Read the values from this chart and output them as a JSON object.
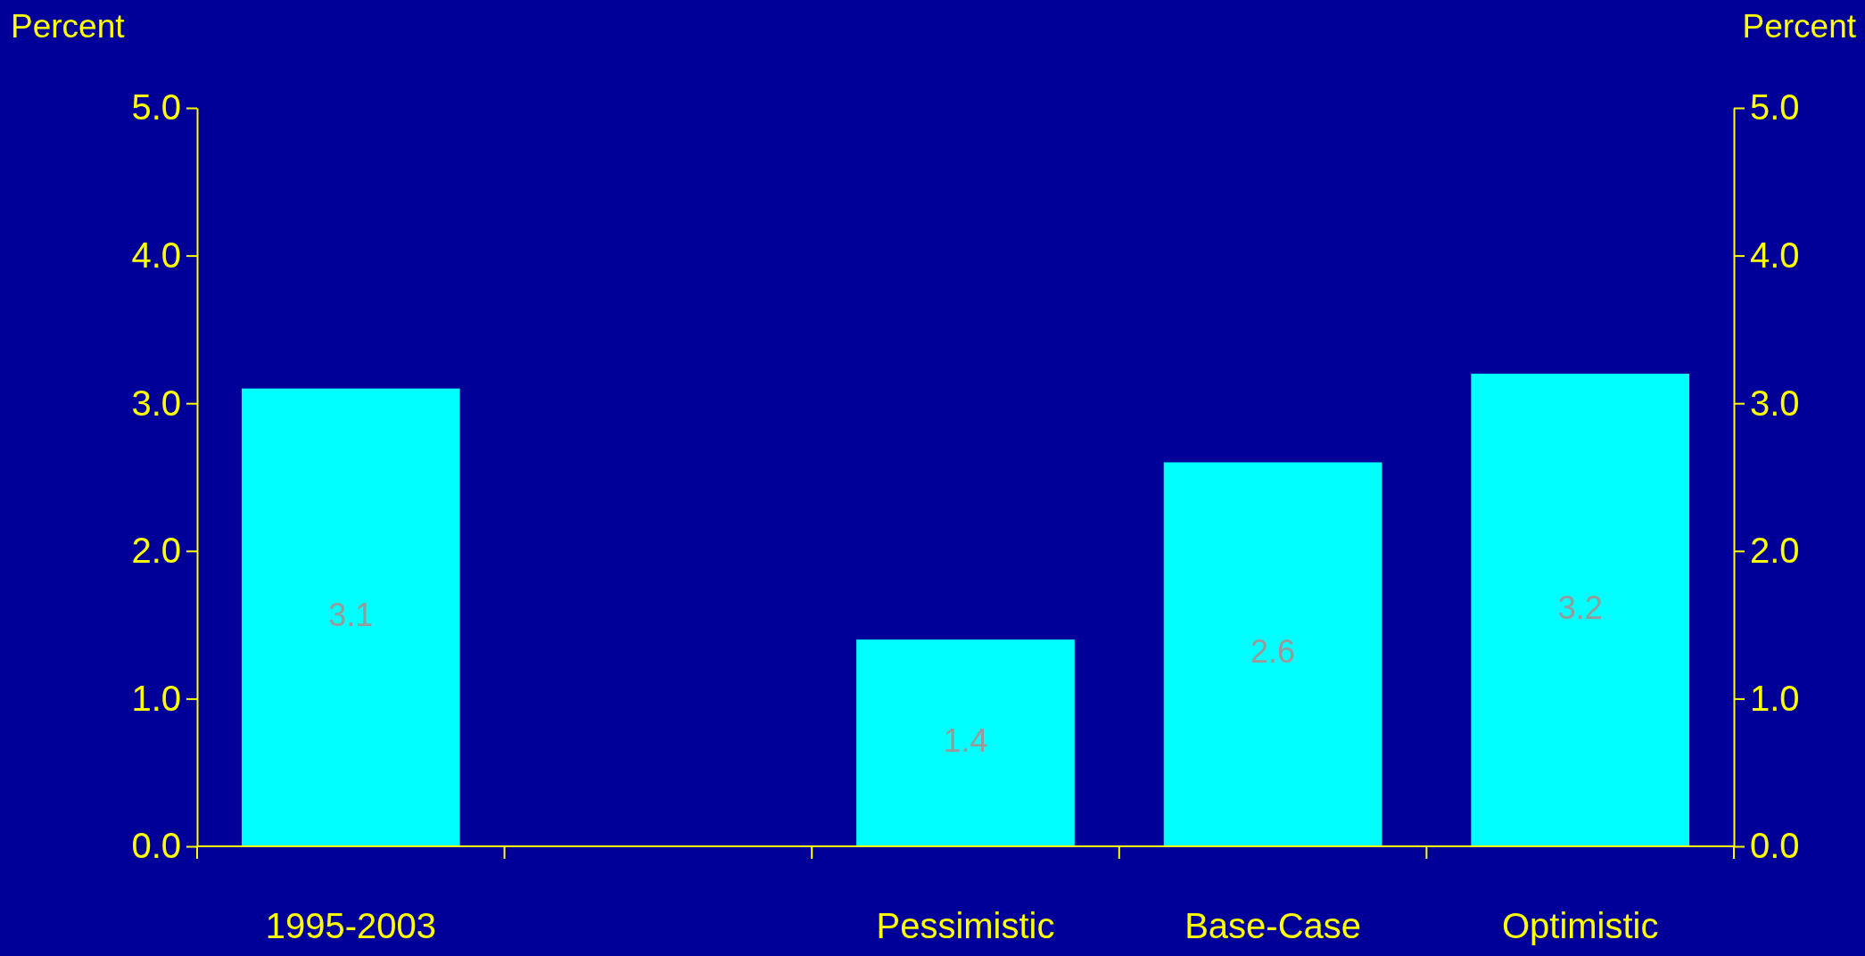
{
  "chart_data": {
    "type": "bar",
    "ylabel": "Percent",
    "y2label": "Percent",
    "categories": [
      "1995-2003",
      null,
      "Pessimistic",
      "Base-Case",
      "Optimistic"
    ],
    "values": [
      3.1,
      null,
      1.4,
      2.6,
      3.2
    ],
    "color": "#00ffff",
    "ylim": [
      0,
      5
    ],
    "yticks": [
      {
        "value": 0,
        "label": "0.0"
      },
      {
        "value": 1,
        "label": "1.0"
      },
      {
        "value": 2,
        "label": "2.0"
      },
      {
        "value": 3,
        "label": "3.0"
      },
      {
        "value": 4,
        "label": "4.0"
      },
      {
        "value": 5,
        "label": "5.0"
      }
    ],
    "y2lim": [
      0,
      5
    ],
    "y2ticks": [
      {
        "value": 0,
        "label": "0.0"
      },
      {
        "value": 1,
        "label": "1.0"
      },
      {
        "value": 2,
        "label": "2.0"
      },
      {
        "value": 3,
        "label": "3.0"
      },
      {
        "value": 4,
        "label": "4.0"
      },
      {
        "value": 5,
        "label": "5.0"
      }
    ],
    "data_labels": true
  }
}
